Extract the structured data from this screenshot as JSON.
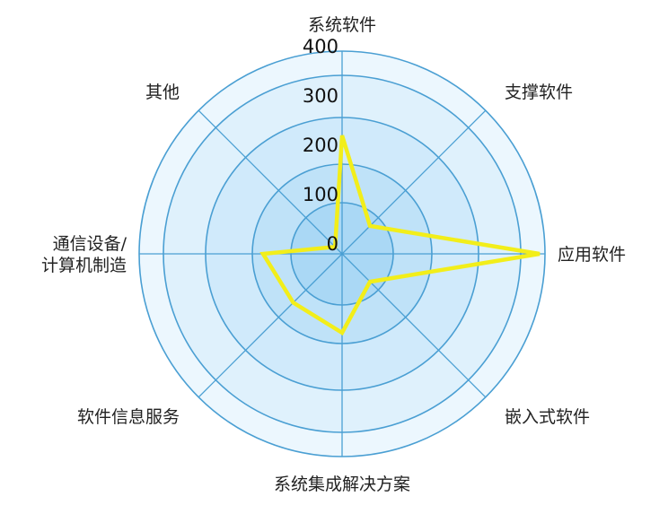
{
  "chart_data": {
    "type": "radar",
    "categories": [
      "系统软件",
      "支撑软件",
      "应用软件",
      "嵌入式软件",
      "系统集成解决方案",
      "软件信息服务",
      "通信设备/\n计算机制造",
      "其他"
    ],
    "values": [
      240,
      80,
      400,
      80,
      160,
      140,
      160,
      20
    ],
    "rlim": [
      0,
      400
    ],
    "ticks": [
      0,
      100,
      200,
      300,
      400
    ],
    "grid": true,
    "legend": "none",
    "colors": {
      "line": "#f2ee1a",
      "axis": "#4a9fd3",
      "rings": [
        "#aad8f5",
        "#bfe2f8",
        "#d0eafb",
        "#dff1fc",
        "#ecf7fe"
      ]
    }
  }
}
